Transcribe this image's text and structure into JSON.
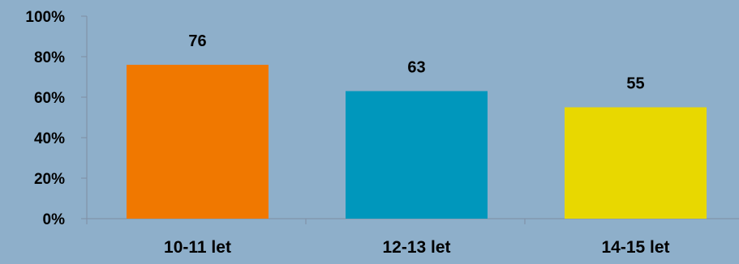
{
  "chart_data": {
    "type": "bar",
    "categories": [
      "10-11 let",
      "12-13 let",
      "14-15 let"
    ],
    "values": [
      76,
      63,
      55
    ],
    "data_labels": [
      "76",
      "63",
      "55"
    ],
    "colors": [
      "#f07800",
      "#0097bc",
      "#e8d800"
    ],
    "title": "",
    "xlabel": "",
    "ylabel": "",
    "ylim": [
      0,
      100
    ],
    "ytick_values": [
      0,
      20,
      40,
      60,
      80,
      100
    ],
    "ytick_labels": [
      "0%",
      "20%",
      "40%",
      "60%",
      "80%",
      "100%"
    ],
    "grid": false,
    "legend": "none",
    "background": "#8eafca",
    "axis_color": "#7f8ea3"
  }
}
